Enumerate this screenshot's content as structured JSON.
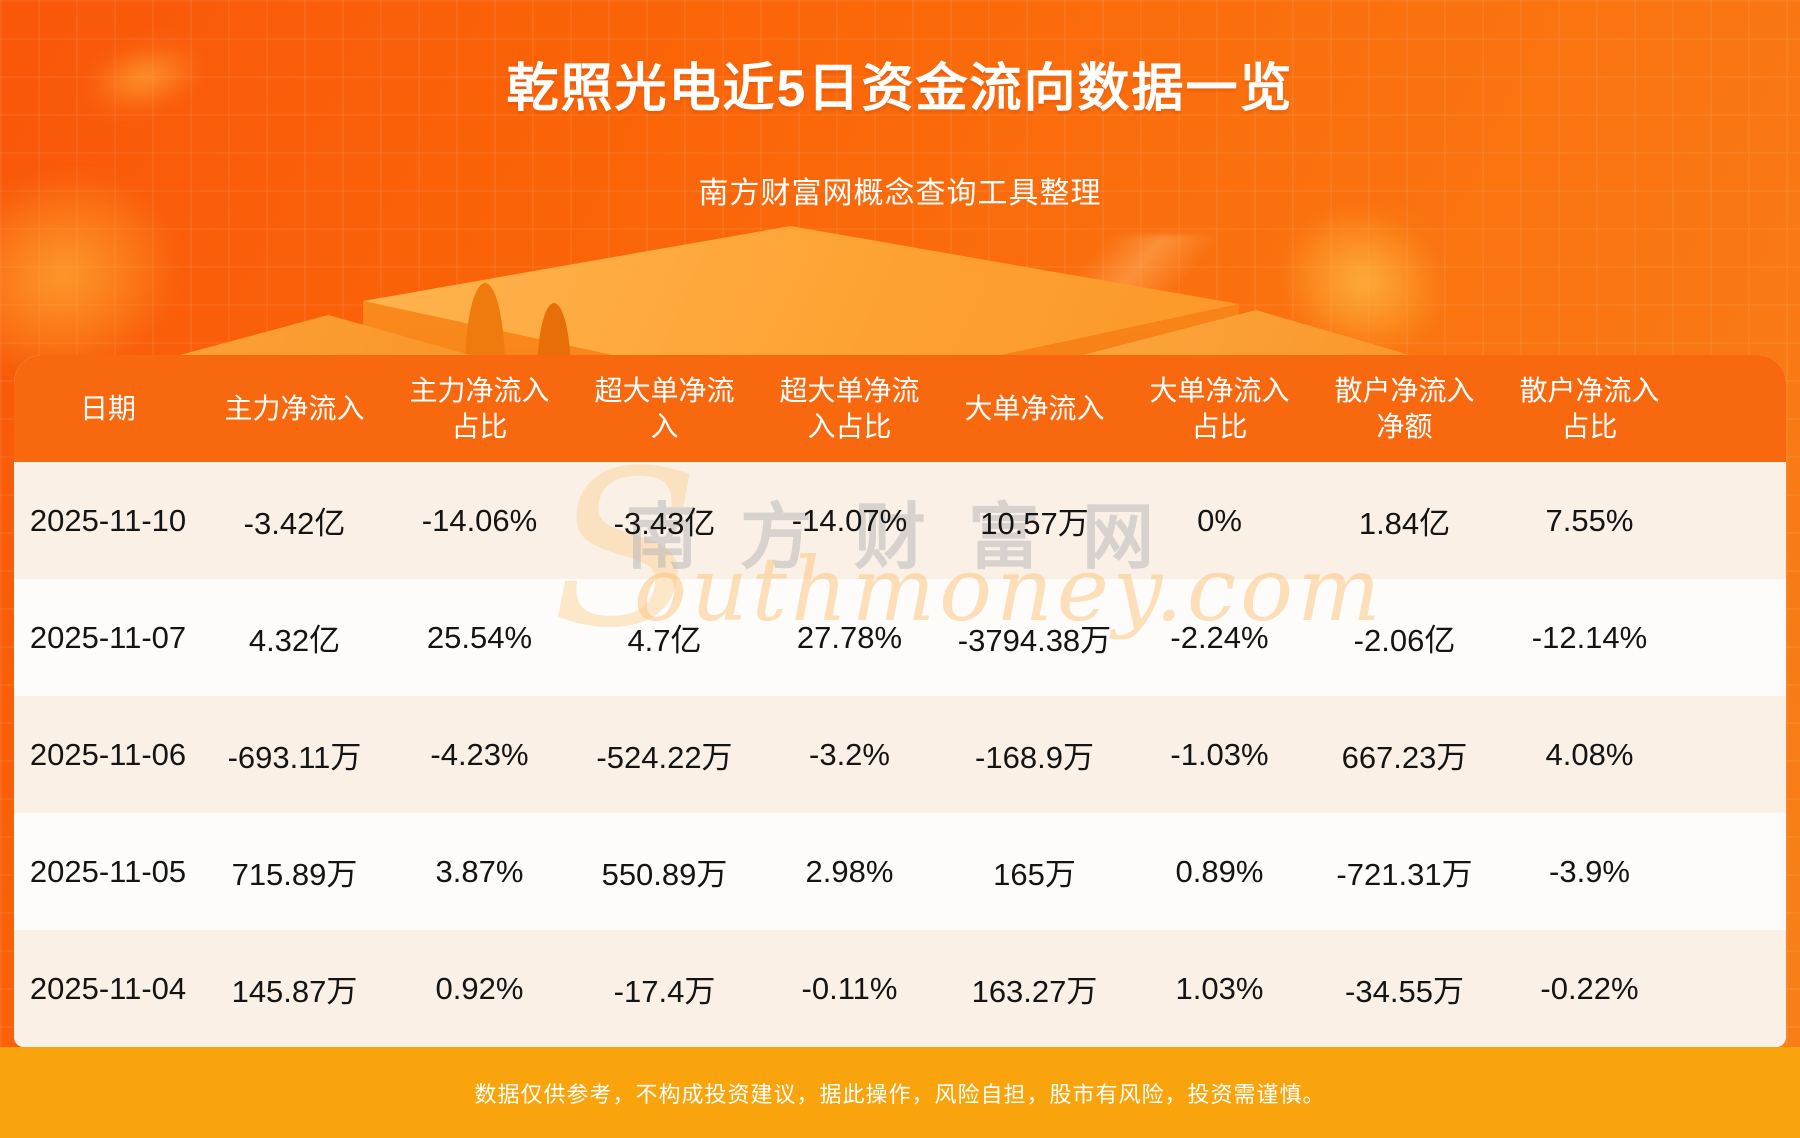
{
  "page": {
    "title": "乾照光电近5日资金流向数据一览",
    "subtitle": "南方财富网概念查询工具整理",
    "disclaimer": "数据仅供参考，不构成投资建议，据此操作，风险自担，股市有风险，投资需谨慎。"
  },
  "watermark": {
    "initial": "S",
    "cn": "南方财富网",
    "en": "outhmoney.com"
  },
  "colors": {
    "background_orange": "#fa6408",
    "header_orange": "#f8680f",
    "row_cream": "#faf0e6",
    "row_white": "#fefcfa",
    "footer_band": "#f9a30d",
    "title_text": "#ffffff",
    "cell_text": "#141414"
  },
  "chart_data": {
    "type": "table",
    "title": "乾照光电近5日资金流向数据一览",
    "columns": [
      "日期",
      "主力净流入",
      "主力净流入占比",
      "超大单净流入",
      "超大单净流入占比",
      "大单净流入",
      "大单净流入占比",
      "散户净流入净额",
      "散户净流入占比"
    ],
    "rows": [
      [
        "2025-11-10",
        "-3.42亿",
        "-14.06%",
        "-3.43亿",
        "-14.07%",
        "10.57万",
        "0%",
        "1.84亿",
        "7.55%"
      ],
      [
        "2025-11-07",
        "4.32亿",
        "25.54%",
        "4.7亿",
        "27.78%",
        "-3794.38万",
        "-2.24%",
        "-2.06亿",
        "-12.14%"
      ],
      [
        "2025-11-06",
        "-693.11万",
        "-4.23%",
        "-524.22万",
        "-3.2%",
        "-168.9万",
        "-1.03%",
        "667.23万",
        "4.08%"
      ],
      [
        "2025-11-05",
        "715.89万",
        "3.87%",
        "550.89万",
        "2.98%",
        "165万",
        "0.89%",
        "-721.31万",
        "-3.9%"
      ],
      [
        "2025-11-04",
        "145.87万",
        "0.92%",
        "-17.4万",
        "-0.11%",
        "163.27万",
        "1.03%",
        "-34.55万",
        "-0.22%"
      ]
    ]
  }
}
